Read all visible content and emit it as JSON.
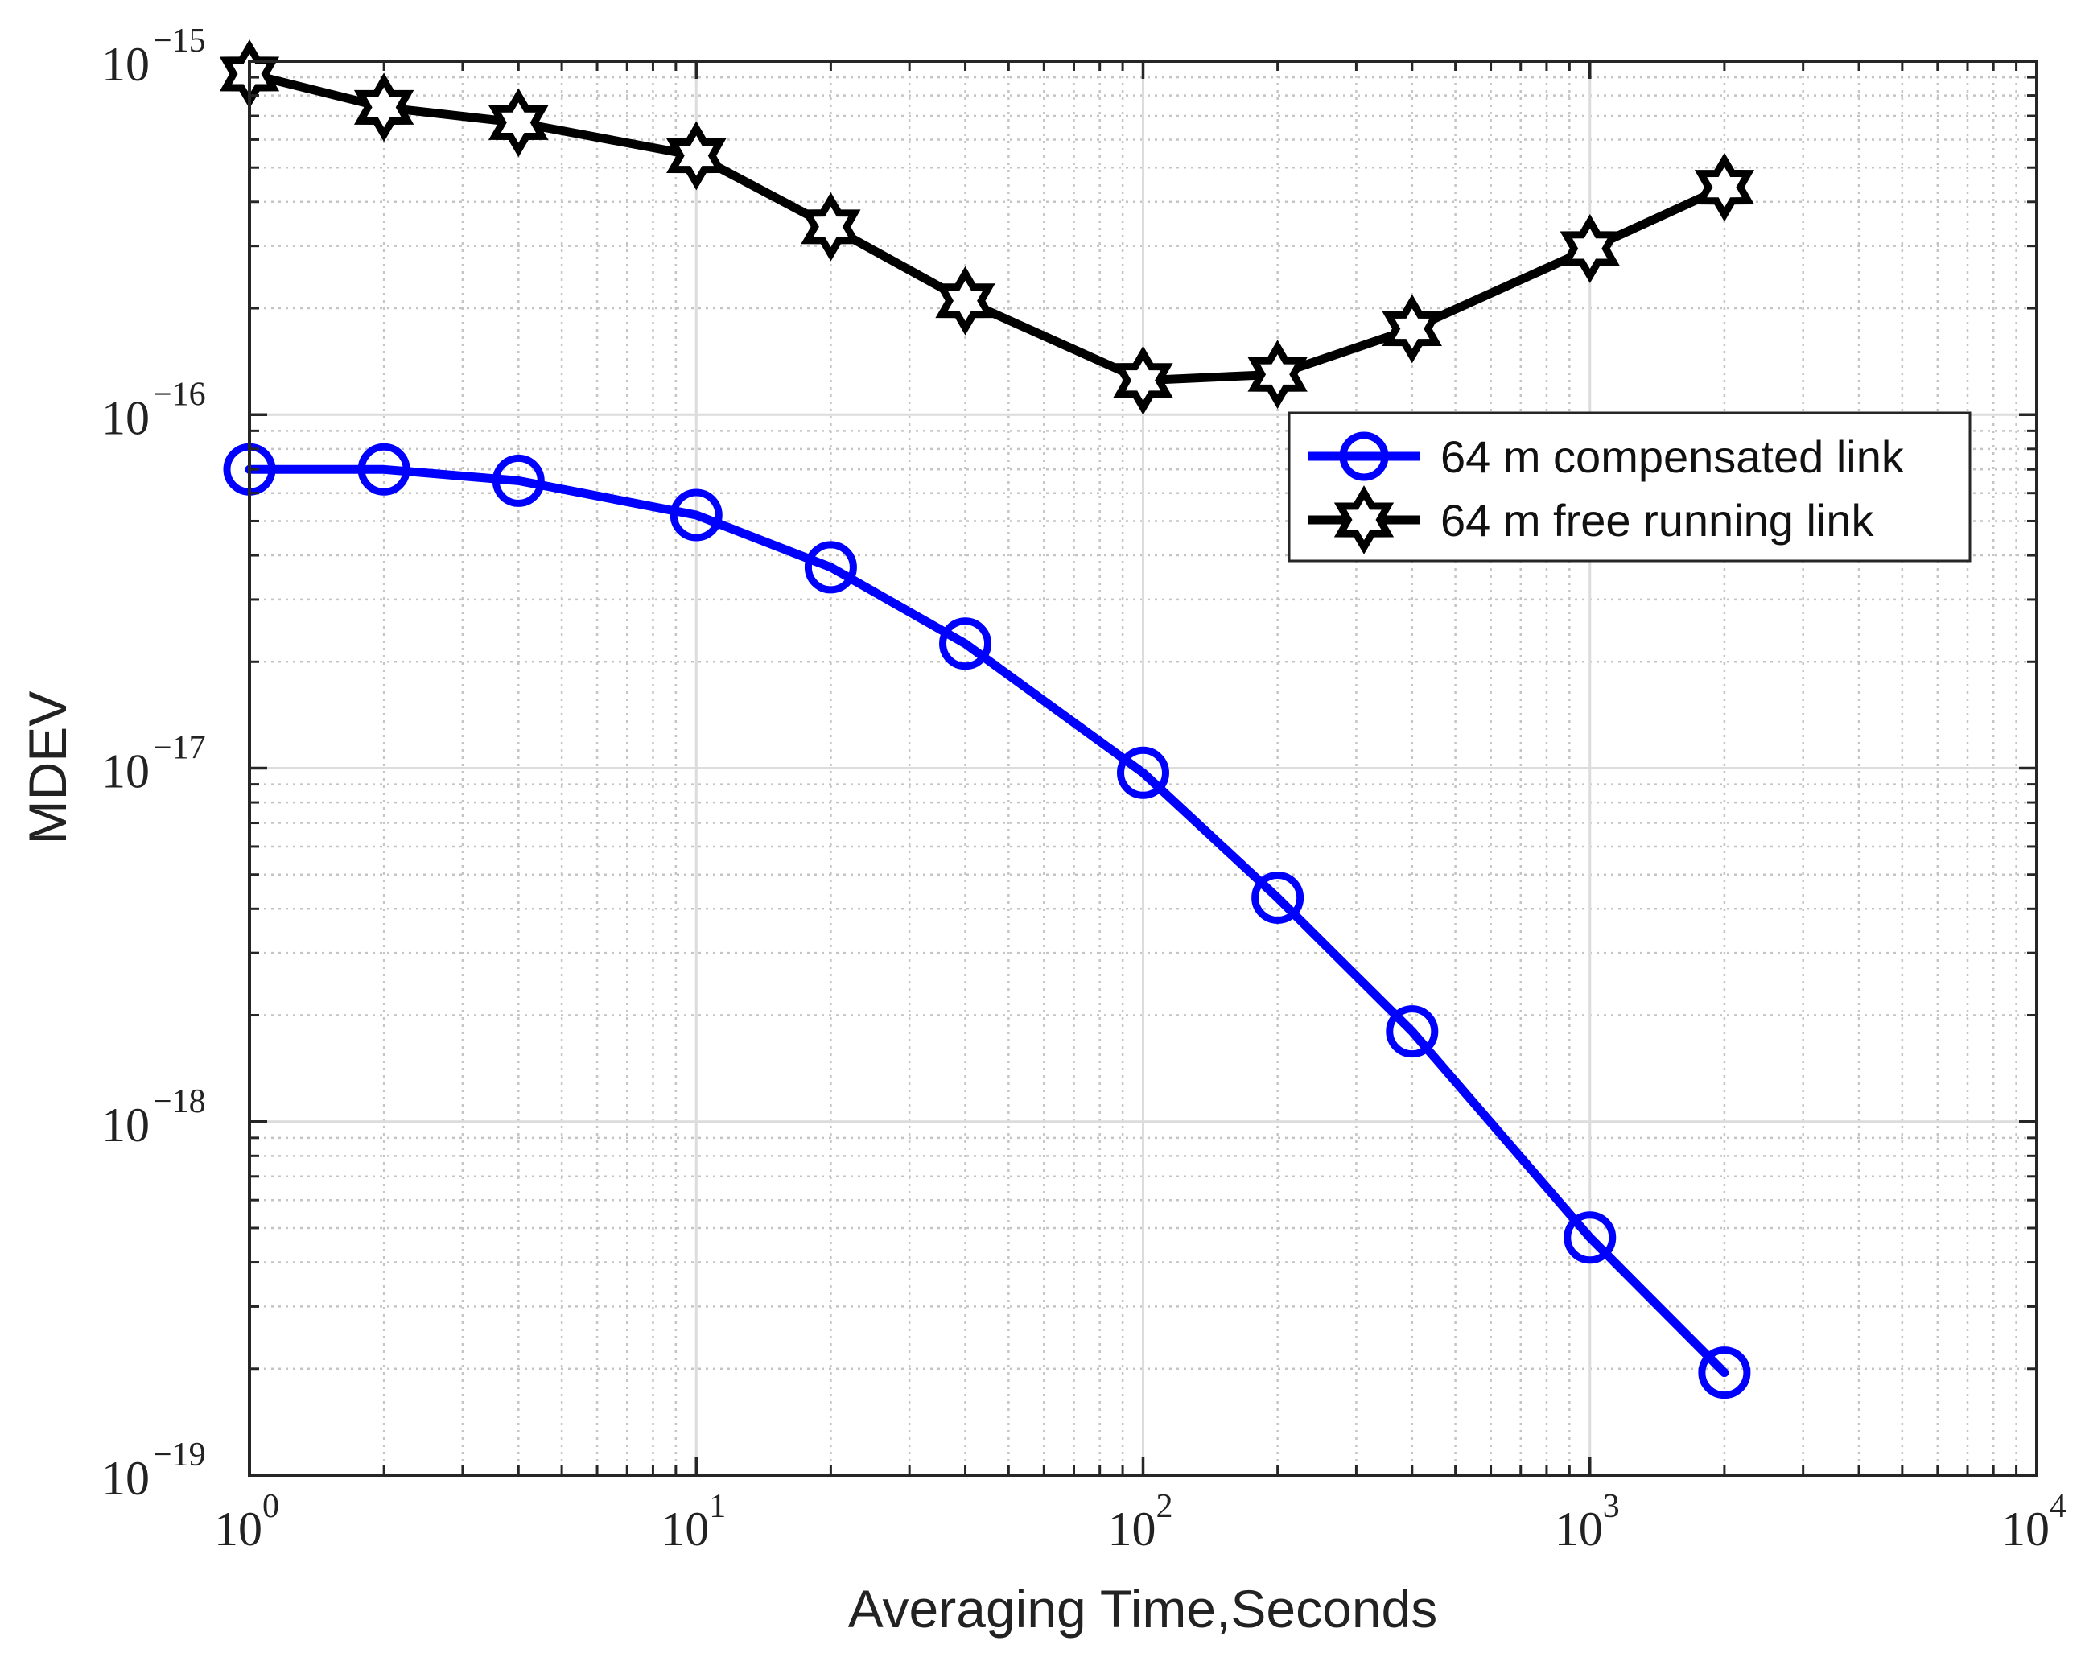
{
  "chart_data": {
    "type": "line",
    "title": "",
    "xlabel": "Averaging Time,Seconds",
    "ylabel": "MDEV",
    "xscale": "log",
    "yscale": "log",
    "xlim": [
      1,
      10000
    ],
    "ylim": [
      1e-19,
      1e-15
    ],
    "grid": true,
    "minor_grid": true,
    "legend_position": "upper-right",
    "x_ticks": [
      {
        "value": 1,
        "base": "10",
        "exp": "0"
      },
      {
        "value": 10,
        "base": "10",
        "exp": "1"
      },
      {
        "value": 100,
        "base": "10",
        "exp": "2"
      },
      {
        "value": 1000,
        "base": "10",
        "exp": "3"
      },
      {
        "value": 10000,
        "base": "10",
        "exp": "4"
      }
    ],
    "y_ticks": [
      {
        "value": 1e-19,
        "base": "10",
        "exp": "−19"
      },
      {
        "value": 1e-18,
        "base": "10",
        "exp": "−18"
      },
      {
        "value": 1e-17,
        "base": "10",
        "exp": "−17"
      },
      {
        "value": 1e-16,
        "base": "10",
        "exp": "−16"
      },
      {
        "value": 1e-15,
        "base": "10",
        "exp": "−15"
      }
    ],
    "series": [
      {
        "name": "64 m compensated link",
        "color": "#0000ff",
        "marker": "circle",
        "x": [
          1,
          2,
          4,
          10,
          20,
          40,
          100,
          200,
          400,
          1000,
          2000
        ],
        "y": [
          7e-17,
          7e-17,
          6.5e-17,
          5.2e-17,
          3.7e-17,
          2.25e-17,
          9.7e-18,
          4.3e-18,
          1.8e-18,
          4.7e-19,
          1.95e-19
        ]
      },
      {
        "name": "64 m free running link",
        "color": "#000000",
        "marker": "hexagram",
        "x": [
          1,
          2,
          4,
          10,
          20,
          40,
          100,
          200,
          400,
          1000,
          2000
        ],
        "y": [
          9.2e-16,
          7.4e-16,
          6.7e-16,
          5.4e-16,
          3.4e-16,
          2.1e-16,
          1.25e-16,
          1.3e-16,
          1.75e-16,
          2.95e-16,
          4.4e-16
        ]
      }
    ]
  }
}
